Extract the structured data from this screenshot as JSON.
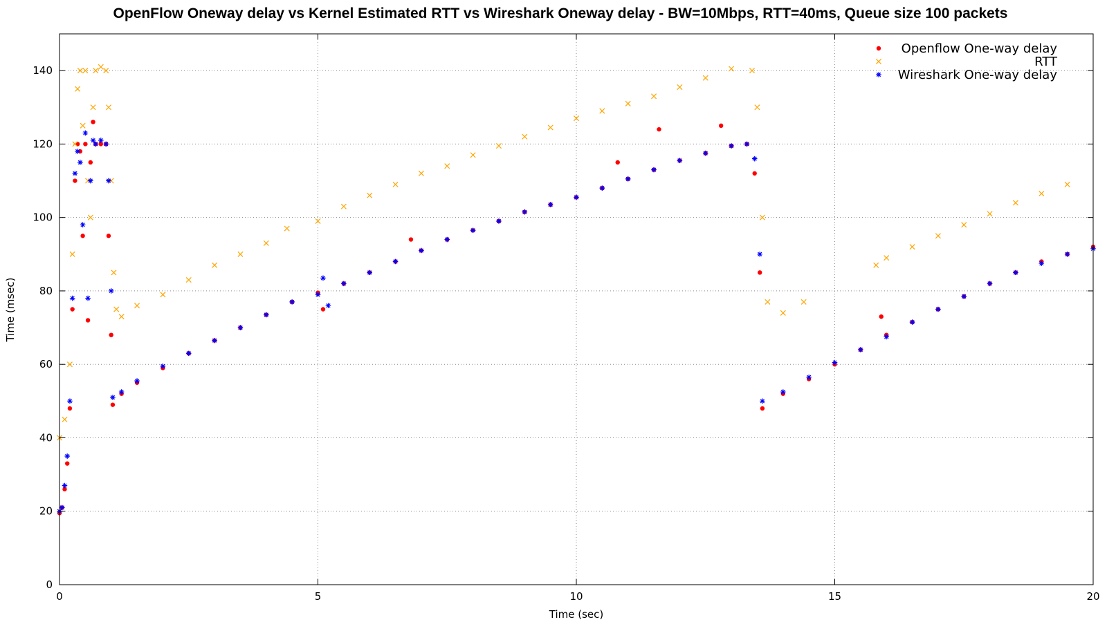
{
  "chart_data": {
    "type": "scatter",
    "title": "OpenFlow Oneway delay vs Kernel Estimated RTT vs Wireshark Oneway delay - BW=10Mbps, RTT=40ms, Queue size 100 packets",
    "xlabel": "Time (sec)",
    "ylabel": "Time (msec)",
    "xlim": [
      0,
      20
    ],
    "ylim": [
      0,
      150
    ],
    "x_ticks": [
      0,
      5,
      10,
      15,
      20
    ],
    "y_ticks": [
      0,
      20,
      40,
      60,
      80,
      100,
      120,
      140
    ],
    "grid": true,
    "legend_position": "top-right",
    "series": [
      {
        "name": "Openflow One-way delay",
        "marker": "filled-circle",
        "color": "#ff0000",
        "points": [
          [
            0.0,
            19.5
          ],
          [
            0.05,
            21
          ],
          [
            0.1,
            26
          ],
          [
            0.15,
            33
          ],
          [
            0.2,
            48
          ],
          [
            0.25,
            75
          ],
          [
            0.3,
            110
          ],
          [
            0.35,
            120
          ],
          [
            0.4,
            118
          ],
          [
            0.45,
            95
          ],
          [
            0.5,
            120
          ],
          [
            0.55,
            72
          ],
          [
            0.6,
            115
          ],
          [
            0.65,
            126
          ],
          [
            0.7,
            120
          ],
          [
            0.8,
            120
          ],
          [
            0.9,
            120
          ],
          [
            0.95,
            95
          ],
          [
            1.0,
            68
          ],
          [
            1.03,
            49
          ],
          [
            1.2,
            52
          ],
          [
            1.5,
            55
          ],
          [
            2.0,
            59
          ],
          [
            2.5,
            63
          ],
          [
            3.0,
            66.5
          ],
          [
            3.5,
            70
          ],
          [
            4.0,
            73.5
          ],
          [
            4.5,
            77
          ],
          [
            5.0,
            79.5
          ],
          [
            5.1,
            75
          ],
          [
            5.5,
            82
          ],
          [
            6.0,
            85
          ],
          [
            6.5,
            88
          ],
          [
            6.8,
            94
          ],
          [
            7.0,
            91
          ],
          [
            7.5,
            94
          ],
          [
            8.0,
            96.5
          ],
          [
            8.5,
            99
          ],
          [
            9.0,
            101.5
          ],
          [
            9.5,
            103.5
          ],
          [
            10.0,
            105.5
          ],
          [
            10.5,
            108
          ],
          [
            10.8,
            115
          ],
          [
            11.0,
            110.5
          ],
          [
            11.5,
            113
          ],
          [
            11.6,
            124
          ],
          [
            12.0,
            115.5
          ],
          [
            12.5,
            117.5
          ],
          [
            12.8,
            125
          ],
          [
            13.0,
            119.5
          ],
          [
            13.3,
            120
          ],
          [
            13.45,
            112
          ],
          [
            13.55,
            85
          ],
          [
            13.6,
            48
          ],
          [
            14.0,
            52
          ],
          [
            14.5,
            56
          ],
          [
            15.0,
            60
          ],
          [
            15.5,
            64
          ],
          [
            15.9,
            73
          ],
          [
            16.0,
            68
          ],
          [
            16.5,
            71.5
          ],
          [
            17.0,
            75
          ],
          [
            17.5,
            78.5
          ],
          [
            18.0,
            82
          ],
          [
            18.5,
            85
          ],
          [
            19.0,
            88
          ],
          [
            19.5,
            90
          ],
          [
            20.0,
            92
          ]
        ]
      },
      {
        "name": "RTT",
        "marker": "cross",
        "color": "#ffa500",
        "points": [
          [
            0.0,
            40
          ],
          [
            0.1,
            45
          ],
          [
            0.2,
            60
          ],
          [
            0.25,
            90
          ],
          [
            0.3,
            120
          ],
          [
            0.35,
            135
          ],
          [
            0.4,
            140
          ],
          [
            0.45,
            125
          ],
          [
            0.5,
            140
          ],
          [
            0.55,
            110
          ],
          [
            0.6,
            100
          ],
          [
            0.65,
            130
          ],
          [
            0.7,
            140
          ],
          [
            0.8,
            141
          ],
          [
            0.9,
            140
          ],
          [
            0.95,
            130
          ],
          [
            1.0,
            110
          ],
          [
            1.05,
            85
          ],
          [
            1.1,
            75
          ],
          [
            1.2,
            73
          ],
          [
            1.5,
            76
          ],
          [
            2.0,
            79
          ],
          [
            2.5,
            83
          ],
          [
            3.0,
            87
          ],
          [
            3.5,
            90
          ],
          [
            4.0,
            93
          ],
          [
            4.4,
            97
          ],
          [
            5.0,
            99
          ],
          [
            5.5,
            103
          ],
          [
            6.0,
            106
          ],
          [
            6.5,
            109
          ],
          [
            7.0,
            112
          ],
          [
            7.5,
            114
          ],
          [
            8.0,
            117
          ],
          [
            8.5,
            119.5
          ],
          [
            9.0,
            122
          ],
          [
            9.5,
            124.5
          ],
          [
            10.0,
            127
          ],
          [
            10.5,
            129
          ],
          [
            11.0,
            131
          ],
          [
            11.5,
            133
          ],
          [
            12.0,
            135.5
          ],
          [
            12.5,
            138
          ],
          [
            13.0,
            140.5
          ],
          [
            13.4,
            140
          ],
          [
            13.5,
            130
          ],
          [
            13.6,
            100
          ],
          [
            13.7,
            77
          ],
          [
            14.0,
            74
          ],
          [
            14.4,
            77
          ],
          [
            15.8,
            87
          ],
          [
            16.0,
            89
          ],
          [
            16.5,
            92
          ],
          [
            17.0,
            95
          ],
          [
            17.5,
            98
          ],
          [
            18.0,
            101
          ],
          [
            18.5,
            104
          ],
          [
            19.0,
            106.5
          ],
          [
            19.5,
            109
          ]
        ]
      },
      {
        "name": "Wireshark One-way delay",
        "marker": "star",
        "color": "#0000ff",
        "points": [
          [
            0.0,
            20
          ],
          [
            0.05,
            21
          ],
          [
            0.1,
            27
          ],
          [
            0.15,
            35
          ],
          [
            0.2,
            50
          ],
          [
            0.25,
            78
          ],
          [
            0.3,
            112
          ],
          [
            0.35,
            118
          ],
          [
            0.4,
            115
          ],
          [
            0.45,
            98
          ],
          [
            0.5,
            123
          ],
          [
            0.55,
            78
          ],
          [
            0.6,
            110
          ],
          [
            0.65,
            121
          ],
          [
            0.7,
            120
          ],
          [
            0.8,
            121
          ],
          [
            0.9,
            120
          ],
          [
            0.95,
            110
          ],
          [
            1.0,
            80
          ],
          [
            1.03,
            51
          ],
          [
            1.2,
            52.5
          ],
          [
            1.5,
            55.5
          ],
          [
            2.0,
            59.5
          ],
          [
            2.5,
            63
          ],
          [
            3.0,
            66.5
          ],
          [
            3.5,
            70
          ],
          [
            4.0,
            73.5
          ],
          [
            4.5,
            77
          ],
          [
            5.0,
            79
          ],
          [
            5.1,
            83.5
          ],
          [
            5.2,
            76
          ],
          [
            5.5,
            82
          ],
          [
            6.0,
            85
          ],
          [
            6.5,
            88
          ],
          [
            7.0,
            91
          ],
          [
            7.5,
            94
          ],
          [
            8.0,
            96.5
          ],
          [
            8.5,
            99
          ],
          [
            9.0,
            101.5
          ],
          [
            9.5,
            103.5
          ],
          [
            10.0,
            105.5
          ],
          [
            10.5,
            108
          ],
          [
            11.0,
            110.5
          ],
          [
            11.5,
            113
          ],
          [
            12.0,
            115.5
          ],
          [
            12.5,
            117.5
          ],
          [
            13.0,
            119.5
          ],
          [
            13.3,
            120
          ],
          [
            13.45,
            116
          ],
          [
            13.55,
            90
          ],
          [
            13.6,
            50
          ],
          [
            14.0,
            52.5
          ],
          [
            14.5,
            56.5
          ],
          [
            15.0,
            60.5
          ],
          [
            15.5,
            64
          ],
          [
            16.0,
            67.5
          ],
          [
            16.5,
            71.5
          ],
          [
            17.0,
            75
          ],
          [
            17.5,
            78.5
          ],
          [
            18.0,
            82
          ],
          [
            18.5,
            85
          ],
          [
            19.0,
            87.5
          ],
          [
            19.5,
            90
          ],
          [
            20.0,
            91.5
          ]
        ]
      }
    ]
  }
}
